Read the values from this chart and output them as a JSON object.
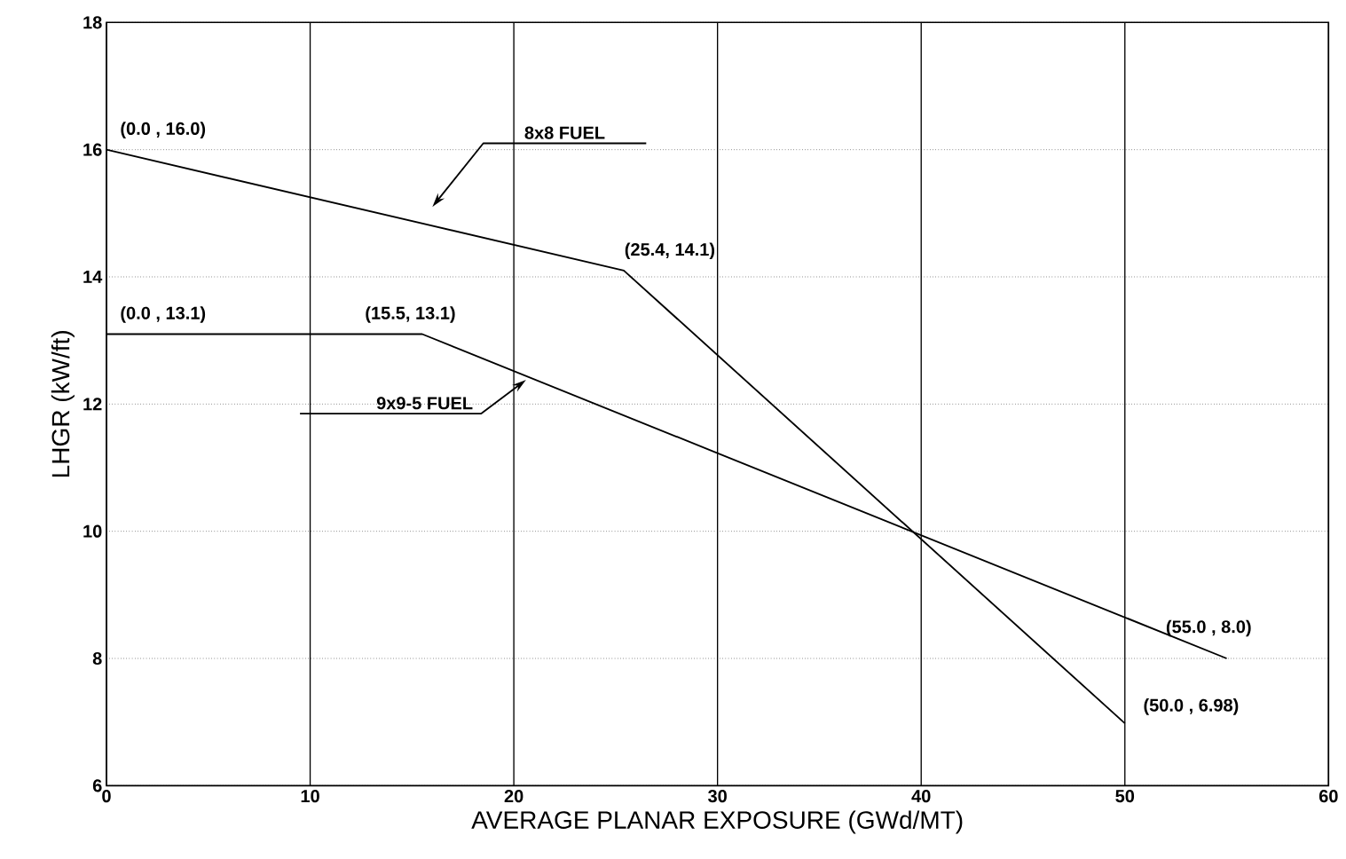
{
  "chart_data": {
    "type": "line",
    "xlabel": "AVERAGE PLANAR EXPOSURE (GWd/MT)",
    "ylabel": "LHGR (kW/ft)",
    "xlim": [
      0,
      60
    ],
    "xticks": [
      0,
      10,
      20,
      30,
      40,
      50,
      60
    ],
    "ylim": [
      6,
      18
    ],
    "yticks": [
      6,
      8,
      10,
      12,
      14,
      16,
      18
    ],
    "grid": true,
    "legend": false,
    "marker": "none",
    "line_style": "solid",
    "series": [
      {
        "name": "8x8 FUEL",
        "color": "#000000",
        "x": [
          0,
          25.4,
          50
        ],
        "values": [
          16.0,
          14.1,
          6.98
        ]
      },
      {
        "name": "9x9-5 FUEL",
        "color": "#000000",
        "x": [
          0,
          15.5,
          55
        ],
        "values": [
          13.1,
          13.1,
          8.0
        ]
      }
    ],
    "annotations": [
      {
        "text": "(0.0 , 16.0)",
        "x": 0,
        "y": 16.0
      },
      {
        "text": "(25.4, 14.1)",
        "x": 25.4,
        "y": 14.1
      },
      {
        "text": "(0.0 , 13.1)",
        "x": 0,
        "y": 13.1
      },
      {
        "text": "(15.5, 13.1)",
        "x": 15.5,
        "y": 13.1
      },
      {
        "text": "(55.0 , 8.0)",
        "x": 55,
        "y": 8.0
      },
      {
        "text": "(50.0 , 6.98)",
        "x": 50,
        "y": 6.98
      }
    ]
  }
}
